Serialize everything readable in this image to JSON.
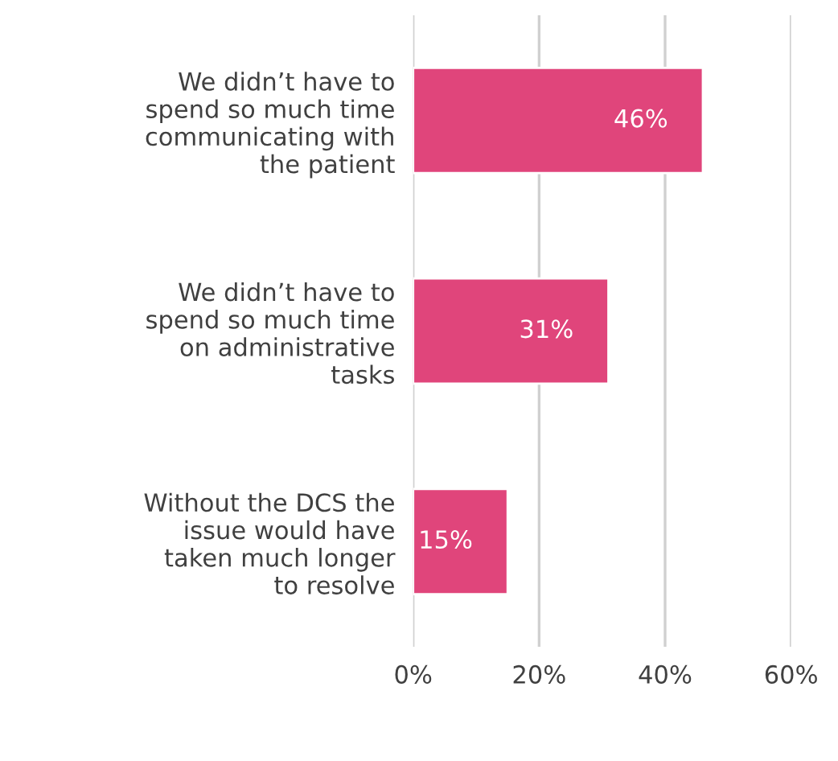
{
  "chart_data": {
    "type": "bar",
    "orientation": "horizontal",
    "categories": [
      "We didn’t have to\nspend so much time\ncommunicating with\nthe patient",
      "We didn’t have to\nspend so much time\non administrative\ntasks",
      "Without the DCS the\nissue would have\ntaken much longer\nto resolve"
    ],
    "values": [
      46,
      31,
      15
    ],
    "value_labels": [
      "46%",
      "31%",
      "15%"
    ],
    "color": "#e0457b",
    "xlim": [
      0,
      60
    ],
    "xticks": [
      {
        "value": 0,
        "label": "0%"
      },
      {
        "value": 20,
        "label": "20%"
      },
      {
        "value": 40,
        "label": "40%"
      },
      {
        "value": 60,
        "label": "60%"
      }
    ],
    "grid": "x"
  }
}
